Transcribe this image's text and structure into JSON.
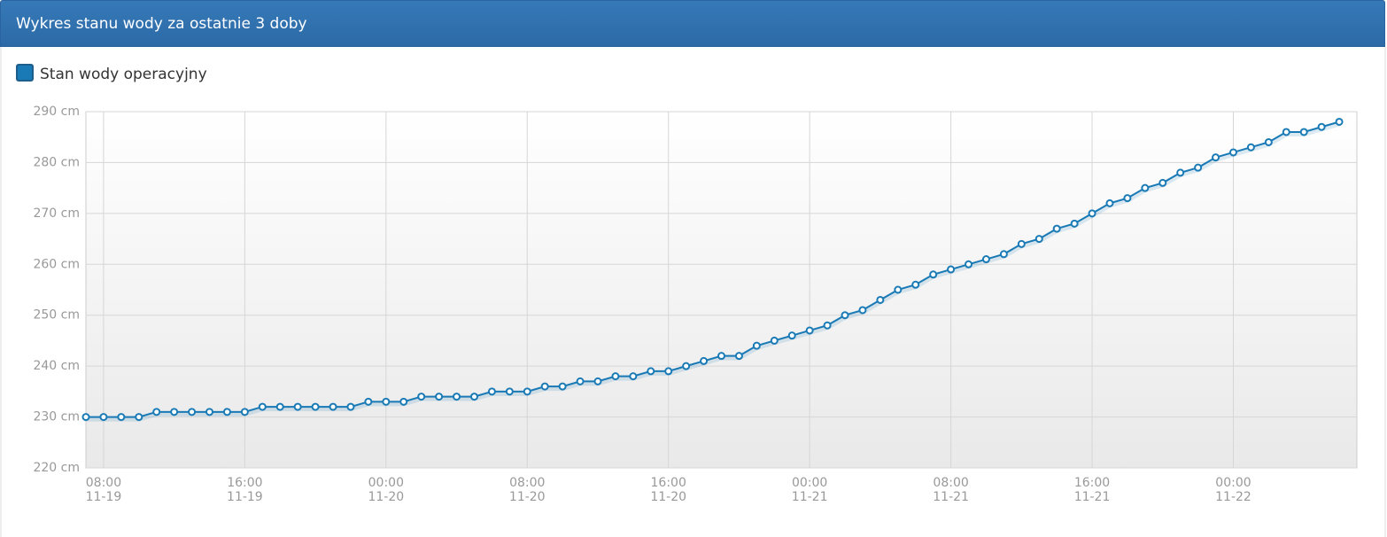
{
  "header": {
    "title": "Wykres stanu wody za ostatnie 3 doby"
  },
  "chart_data": {
    "type": "line",
    "x": [
      "11-19 07:00",
      "11-19 08:00",
      "11-19 09:00",
      "11-19 10:00",
      "11-19 11:00",
      "11-19 12:00",
      "11-19 13:00",
      "11-19 14:00",
      "11-19 15:00",
      "11-19 16:00",
      "11-19 17:00",
      "11-19 18:00",
      "11-19 19:00",
      "11-19 20:00",
      "11-19 21:00",
      "11-19 22:00",
      "11-19 23:00",
      "11-20 00:00",
      "11-20 01:00",
      "11-20 02:00",
      "11-20 03:00",
      "11-20 04:00",
      "11-20 05:00",
      "11-20 06:00",
      "11-20 07:00",
      "11-20 08:00",
      "11-20 09:00",
      "11-20 10:00",
      "11-20 11:00",
      "11-20 12:00",
      "11-20 13:00",
      "11-20 14:00",
      "11-20 15:00",
      "11-20 16:00",
      "11-20 17:00",
      "11-20 18:00",
      "11-20 19:00",
      "11-20 20:00",
      "11-20 21:00",
      "11-20 22:00",
      "11-20 23:00",
      "11-21 00:00",
      "11-21 01:00",
      "11-21 02:00",
      "11-21 03:00",
      "11-21 04:00",
      "11-21 05:00",
      "11-21 06:00",
      "11-21 07:00",
      "11-21 08:00",
      "11-21 09:00",
      "11-21 10:00",
      "11-21 11:00",
      "11-21 12:00",
      "11-21 13:00",
      "11-21 14:00",
      "11-21 15:00",
      "11-21 16:00",
      "11-21 17:00",
      "11-21 18:00",
      "11-21 19:00",
      "11-21 20:00",
      "11-21 21:00",
      "11-21 22:00",
      "11-21 23:00",
      "11-22 00:00",
      "11-22 01:00",
      "11-22 02:00",
      "11-22 03:00",
      "11-22 04:00",
      "11-22 05:00",
      "11-22 06:00"
    ],
    "series": [
      {
        "name": "Stan wody operacyjny",
        "color": "#1a7ab5",
        "values": [
          230,
          230,
          230,
          230,
          231,
          231,
          231,
          231,
          231,
          231,
          232,
          232,
          232,
          232,
          232,
          232,
          233,
          233,
          233,
          234,
          234,
          234,
          234,
          235,
          235,
          235,
          236,
          236,
          237,
          237,
          238,
          238,
          239,
          239,
          240,
          241,
          242,
          242,
          244,
          245,
          246,
          247,
          248,
          250,
          251,
          253,
          255,
          256,
          258,
          259,
          260,
          261,
          262,
          264,
          265,
          267,
          268,
          270,
          272,
          273,
          275,
          276,
          278,
          279,
          281,
          282,
          283,
          284,
          286,
          286,
          287,
          288
        ]
      }
    ],
    "xlim": [
      "11-19 07:00",
      "11-22 07:00"
    ],
    "xticks": [
      {
        "value": "11-19 08:00",
        "label": [
          "08:00",
          "11-19"
        ]
      },
      {
        "value": "11-19 16:00",
        "label": [
          "16:00",
          "11-19"
        ]
      },
      {
        "value": "11-20 00:00",
        "label": [
          "00:00",
          "11-20"
        ]
      },
      {
        "value": "11-20 08:00",
        "label": [
          "08:00",
          "11-20"
        ]
      },
      {
        "value": "11-20 16:00",
        "label": [
          "16:00",
          "11-20"
        ]
      },
      {
        "value": "11-21 00:00",
        "label": [
          "00:00",
          "11-21"
        ]
      },
      {
        "value": "11-21 08:00",
        "label": [
          "08:00",
          "11-21"
        ]
      },
      {
        "value": "11-21 16:00",
        "label": [
          "16:00",
          "11-21"
        ]
      },
      {
        "value": "11-22 00:00",
        "label": [
          "00:00",
          "11-22"
        ]
      }
    ],
    "ylim": [
      220,
      290
    ],
    "yticks": [
      {
        "value": 220,
        "label": "220 cm"
      },
      {
        "value": 230,
        "label": "230 cm"
      },
      {
        "value": 240,
        "label": "240 cm"
      },
      {
        "value": 250,
        "label": "250 cm"
      },
      {
        "value": 260,
        "label": "260 cm"
      },
      {
        "value": 270,
        "label": "270 cm"
      },
      {
        "value": 280,
        "label": "280 cm"
      },
      {
        "value": 290,
        "label": "290 cm"
      }
    ],
    "grid": true
  }
}
